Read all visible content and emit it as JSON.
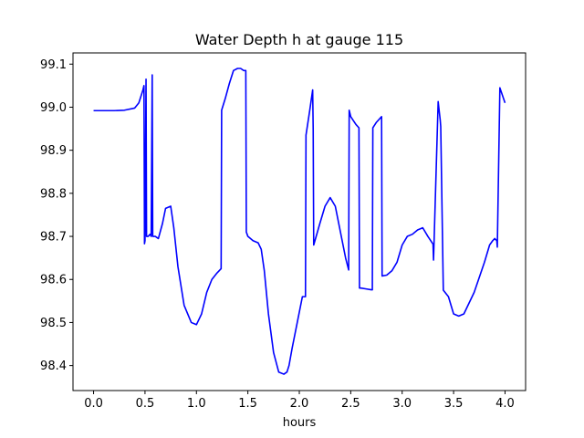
{
  "chart_data": {
    "type": "line",
    "title": "Water Depth h at gauge 115",
    "xlabel": "hours",
    "ylabel": "",
    "xlim": [
      -0.2,
      4.2
    ],
    "ylim": [
      98.342,
      99.126
    ],
    "xticks": [
      0.0,
      0.5,
      1.0,
      1.5,
      2.0,
      2.5,
      3.0,
      3.5,
      4.0
    ],
    "xtick_labels": [
      "0.0",
      "0.5",
      "1.0",
      "1.5",
      "2.0",
      "2.5",
      "3.0",
      "3.5",
      "4.0"
    ],
    "yticks": [
      98.4,
      98.5,
      98.6,
      98.7,
      98.8,
      98.9,
      99.0,
      99.1
    ],
    "ytick_labels": [
      "98.4",
      "98.5",
      "98.6",
      "98.7",
      "98.8",
      "98.9",
      "99.0",
      "99.1"
    ],
    "grid": false,
    "series": [
      {
        "color": "#0000ff",
        "x": [
          0.0,
          0.2,
          0.3,
          0.4,
          0.44,
          0.48,
          0.49,
          0.495,
          0.5,
          0.51,
          0.515,
          0.53,
          0.55,
          0.56,
          0.57,
          0.575,
          0.6,
          0.63,
          0.67,
          0.7,
          0.75,
          0.78,
          0.82,
          0.88,
          0.95,
          1.0,
          1.05,
          1.1,
          1.15,
          1.2,
          1.24,
          1.245,
          1.28,
          1.32,
          1.36,
          1.4,
          1.43,
          1.46,
          1.48,
          1.485,
          1.5,
          1.55,
          1.6,
          1.63,
          1.66,
          1.7,
          1.75,
          1.8,
          1.85,
          1.88,
          1.9,
          1.93,
          1.98,
          2.03,
          2.06,
          2.065,
          2.1,
          2.13,
          2.135,
          2.14,
          2.2,
          2.25,
          2.3,
          2.35,
          2.45,
          2.48,
          2.485,
          2.5,
          2.55,
          2.58,
          2.585,
          2.6,
          2.65,
          2.7,
          2.71,
          2.715,
          2.75,
          2.8,
          2.805,
          2.85,
          2.9,
          2.95,
          3.0,
          3.05,
          3.1,
          3.15,
          3.2,
          3.25,
          3.3,
          3.305,
          3.35,
          3.37,
          3.375,
          3.4,
          3.45,
          3.5,
          3.55,
          3.6,
          3.7,
          3.8,
          3.85,
          3.88,
          3.9,
          3.92,
          3.925,
          3.95,
          4.0
        ],
        "y": [
          98.992,
          98.992,
          98.993,
          98.998,
          99.01,
          99.04,
          99.05,
          98.683,
          98.69,
          99.065,
          98.7,
          98.7,
          98.705,
          98.7,
          99.075,
          98.7,
          98.7,
          98.695,
          98.73,
          98.765,
          98.77,
          98.72,
          98.63,
          98.54,
          98.5,
          98.495,
          98.52,
          98.57,
          98.6,
          98.615,
          98.625,
          98.993,
          99.02,
          99.055,
          99.085,
          99.09,
          99.09,
          99.085,
          99.085,
          98.71,
          98.7,
          98.69,
          98.685,
          98.67,
          98.62,
          98.52,
          98.43,
          98.385,
          98.38,
          98.385,
          98.4,
          98.44,
          98.5,
          98.56,
          98.56,
          98.935,
          98.99,
          99.04,
          98.95,
          98.68,
          98.73,
          98.77,
          98.79,
          98.77,
          98.65,
          98.622,
          98.993,
          98.978,
          98.96,
          98.952,
          98.58,
          98.58,
          98.578,
          98.576,
          98.576,
          98.952,
          98.965,
          98.978,
          98.608,
          98.61,
          98.62,
          98.64,
          98.68,
          98.7,
          98.705,
          98.715,
          98.72,
          98.7,
          98.682,
          98.645,
          99.013,
          98.97,
          98.955,
          98.575,
          98.56,
          98.52,
          98.515,
          98.52,
          98.57,
          98.64,
          98.68,
          98.69,
          98.695,
          98.69,
          98.675,
          99.045,
          99.01
        ]
      }
    ]
  }
}
